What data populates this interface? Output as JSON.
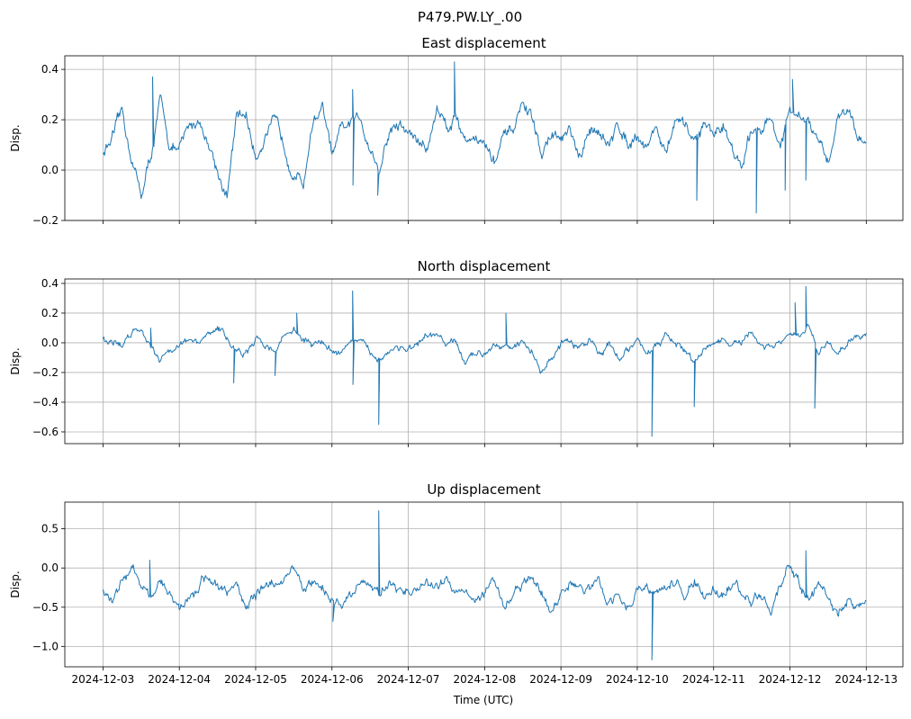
{
  "chart_data": {
    "type": "line",
    "title": "P479.PW.LY_.00",
    "xlabel": "Time (UTC)",
    "x_ticks": [
      "2024-12-03",
      "2024-12-04",
      "2024-12-05",
      "2024-12-06",
      "2024-12-07",
      "2024-12-08",
      "2024-12-09",
      "2024-12-10",
      "2024-12-11",
      "2024-12-12",
      "2024-12-13"
    ],
    "x_range_days_from_2024_12_03": [
      -0.5,
      10.48
    ],
    "sample_interval_hours": 3,
    "line_color": "#1f77b4",
    "grid": true,
    "panels": [
      {
        "title": "East displacement",
        "ylabel": "Disp.",
        "ylim": [
          -0.2,
          0.454
        ],
        "y_ticks": [
          -0.2,
          0.0,
          0.2,
          0.4
        ],
        "y_tick_labels": [
          "−0.2",
          "0.0",
          "0.2",
          "0.4"
        ],
        "noise": 0.03,
        "values": [
          0.07,
          0.12,
          0.22,
          0.05,
          -0.1,
          0.05,
          0.27,
          0.1,
          0.07,
          0.17,
          0.2,
          0.12,
          0.0,
          -0.1,
          0.2,
          0.22,
          0.05,
          0.15,
          0.18,
          0.1,
          0.0,
          -0.05,
          0.2,
          0.25,
          0.05,
          0.15,
          0.18,
          0.2,
          0.1,
          0.0,
          0.15,
          0.18,
          0.15,
          0.12,
          0.08,
          0.25,
          0.18,
          0.22,
          0.12,
          0.15,
          0.1,
          0.03,
          0.12,
          0.15,
          0.27,
          0.2,
          0.05,
          0.15,
          0.12,
          0.15,
          0.02,
          0.15,
          0.18,
          0.08,
          0.18,
          0.12,
          0.15,
          0.1,
          0.18,
          0.05,
          0.2,
          0.15,
          0.12,
          0.18,
          0.15,
          0.18,
          0.1,
          0.0,
          0.15,
          0.18,
          0.2,
          0.1,
          0.22,
          0.2,
          0.18,
          0.1,
          0.02,
          0.22,
          0.25,
          0.15,
          0.12
        ],
        "spikes": [
          [
            15.6,
            0.37
          ],
          [
            38.3,
            -0.1
          ],
          [
            78.5,
            0.32
          ],
          [
            78.6,
            -0.06
          ],
          [
            86.4,
            -0.1
          ],
          [
            110.5,
            0.43
          ],
          [
            186.7,
            -0.12
          ],
          [
            205.4,
            -0.17
          ],
          [
            214.5,
            -0.08
          ],
          [
            216.8,
            0.36
          ],
          [
            221,
            -0.04
          ]
        ]
      },
      {
        "title": "North displacement",
        "ylabel": "Disp.",
        "ylim": [
          -0.679,
          0.43
        ],
        "y_ticks": [
          -0.6,
          -0.4,
          -0.2,
          0.0,
          0.2,
          0.4
        ],
        "y_tick_labels": [
          "−0.6",
          "−0.4",
          "−0.2",
          "0.0",
          "0.2",
          "0.4"
        ],
        "noise": 0.03,
        "values": [
          0.03,
          0.0,
          -0.02,
          0.08,
          0.1,
          0.0,
          -0.1,
          -0.05,
          0.0,
          0.02,
          -0.02,
          0.05,
          0.1,
          0.03,
          -0.05,
          -0.08,
          0.0,
          0.0,
          -0.05,
          0.05,
          0.1,
          0.02,
          -0.02,
          0.0,
          -0.05,
          -0.05,
          0.02,
          0.0,
          -0.08,
          -0.1,
          -0.05,
          -0.02,
          -0.05,
          -0.03,
          0.02,
          0.05,
          -0.02,
          0.0,
          -0.15,
          -0.08,
          -0.05,
          0.0,
          0.02,
          -0.05,
          0.0,
          -0.05,
          -0.2,
          -0.1,
          -0.02,
          0.0,
          -0.05,
          0.02,
          -0.05,
          0.0,
          -0.1,
          -0.05,
          0.0,
          -0.05,
          -0.02,
          0.03,
          0.0,
          -0.05,
          -0.15,
          -0.05,
          0.0,
          0.02,
          -0.02,
          0.0,
          0.05,
          -0.02,
          -0.05,
          0.0,
          0.05,
          0.02,
          0.1,
          -0.05,
          0.0,
          -0.1,
          0.0,
          0.05,
          0.07
        ],
        "spikes": [
          [
            15,
            0.1
          ],
          [
            41.1,
            -0.27
          ],
          [
            54.1,
            -0.22
          ],
          [
            60.9,
            0.2
          ],
          [
            78.5,
            0.35
          ],
          [
            78.6,
            -0.28
          ],
          [
            86.7,
            -0.55
          ],
          [
            126.7,
            0.2
          ],
          [
            172.6,
            -0.63
          ],
          [
            185.9,
            -0.43
          ],
          [
            217.6,
            0.27
          ],
          [
            221,
            0.38
          ],
          [
            223.8,
            -0.44
          ]
        ]
      },
      {
        "title": "Up displacement",
        "ylabel": "Disp.",
        "ylim": [
          -1.26,
          0.84
        ],
        "y_ticks": [
          -1.0,
          -0.5,
          0.0,
          0.5
        ],
        "y_tick_labels": [
          "−1.0",
          "−0.5",
          "0.0",
          "0.5"
        ],
        "noise": 0.08,
        "values": [
          -0.3,
          -0.4,
          -0.2,
          0.0,
          -0.15,
          -0.3,
          -0.2,
          -0.4,
          -0.5,
          -0.35,
          -0.25,
          -0.1,
          -0.2,
          -0.35,
          -0.2,
          -0.45,
          -0.4,
          -0.2,
          -0.25,
          -0.1,
          0.0,
          -0.3,
          -0.2,
          -0.25,
          -0.4,
          -0.5,
          -0.3,
          -0.2,
          -0.15,
          -0.35,
          -0.2,
          -0.3,
          -0.3,
          -0.25,
          -0.2,
          -0.3,
          -0.15,
          -0.3,
          -0.2,
          -0.4,
          -0.3,
          -0.2,
          -0.5,
          -0.3,
          -0.2,
          -0.15,
          -0.35,
          -0.55,
          -0.35,
          -0.2,
          -0.25,
          -0.3,
          -0.15,
          -0.4,
          -0.35,
          -0.5,
          -0.3,
          -0.2,
          -0.35,
          -0.3,
          -0.2,
          -0.35,
          -0.15,
          -0.4,
          -0.3,
          -0.25,
          -0.2,
          -0.35,
          -0.45,
          -0.3,
          -0.5,
          -0.3,
          -0.05,
          -0.2,
          -0.4,
          -0.2,
          -0.35,
          -0.6,
          -0.4,
          -0.5,
          -0.45
        ],
        "spikes": [
          [
            14.7,
            0.1
          ],
          [
            72.3,
            -0.68
          ],
          [
            86.7,
            0.73
          ],
          [
            172.6,
            -1.17
          ],
          [
            221,
            0.22
          ]
        ]
      }
    ]
  }
}
